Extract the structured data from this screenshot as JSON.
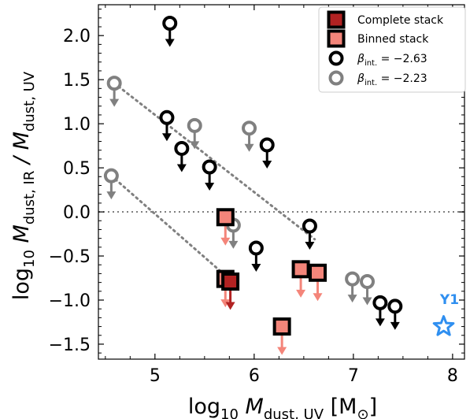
{
  "chart_data": {
    "type": "scatter",
    "xlabel_parts": [
      "log",
      "10",
      " M",
      "dust, UV",
      " [M",
      "⊙",
      "]"
    ],
    "ylabel_parts": [
      "log",
      "10",
      " M",
      "dust, IR",
      " / M",
      "dust, UV"
    ],
    "xlim": [
      4.43,
      8.12
    ],
    "ylim": [
      -1.67,
      2.35
    ],
    "xticks": [
      5,
      6,
      7,
      8
    ],
    "xtick_labels": [
      "5",
      "6",
      "7",
      "8"
    ],
    "yticks": [
      -1.5,
      -1.0,
      -0.5,
      0.0,
      0.5,
      1.0,
      1.5,
      2.0
    ],
    "ytick_labels": [
      "−1.5",
      "−1.0",
      "−0.5",
      "0.0",
      "0.5",
      "1.0",
      "1.5",
      "2.0"
    ],
    "reference_line_y": 0.0,
    "colors": {
      "complete": "#b22222",
      "binned": "#f4857a",
      "beta_263": "#000000",
      "beta_223": "#808080",
      "annotation": "#2f8ff0",
      "dotted": "#808080"
    },
    "legend": {
      "position": "top-right",
      "entries": [
        {
          "marker": "square-complete",
          "label": "Complete stack"
        },
        {
          "marker": "square-binned",
          "label": "Binned stack"
        },
        {
          "marker": "circle-black",
          "label_prefix": "β",
          "label_sub": "int.",
          "label_suffix": " = −2.63"
        },
        {
          "marker": "circle-grey",
          "label_prefix": "β",
          "label_sub": "int.",
          "label_suffix": " = −2.23"
        }
      ]
    },
    "series": [
      {
        "key": "beta_263",
        "upper_limits": true,
        "points": [
          {
            "x": 5.15,
            "y": 2.14
          },
          {
            "x": 5.12,
            "y": 1.07
          },
          {
            "x": 5.27,
            "y": 0.72
          },
          {
            "x": 5.55,
            "y": 0.51
          },
          {
            "x": 6.13,
            "y": 0.76
          },
          {
            "x": 6.02,
            "y": -0.41
          },
          {
            "x": 6.56,
            "y": -0.16
          },
          {
            "x": 7.27,
            "y": -1.03
          },
          {
            "x": 7.42,
            "y": -1.07
          }
        ]
      },
      {
        "key": "beta_223",
        "upper_limits": true,
        "points": [
          {
            "x": 4.59,
            "y": 1.46
          },
          {
            "x": 4.56,
            "y": 0.41
          },
          {
            "x": 5.4,
            "y": 0.98
          },
          {
            "x": 5.95,
            "y": 0.95
          },
          {
            "x": 5.79,
            "y": -0.15
          },
          {
            "x": 6.99,
            "y": -0.76
          },
          {
            "x": 7.14,
            "y": -0.79
          }
        ]
      },
      {
        "key": "complete",
        "upper_limits": true,
        "points": [
          {
            "x": 5.76,
            "y": -0.79
          }
        ]
      },
      {
        "key": "binned",
        "upper_limits": true,
        "points": [
          {
            "x": 5.71,
            "y": -0.06
          },
          {
            "x": 5.71,
            "y": -0.76
          },
          {
            "x": 6.28,
            "y": -1.3
          },
          {
            "x": 6.47,
            "y": -0.65
          },
          {
            "x": 6.64,
            "y": -0.69
          }
        ]
      }
    ],
    "dotted_lines": [
      {
        "x": [
          4.59,
          6.61
        ],
        "y": [
          1.46,
          -0.31
        ]
      },
      {
        "x": [
          4.56,
          5.78
        ],
        "y": [
          0.41,
          -0.79
        ]
      }
    ],
    "annotation": {
      "label": "Y1",
      "marker": "star",
      "x": 7.91,
      "y": -1.3
    }
  }
}
